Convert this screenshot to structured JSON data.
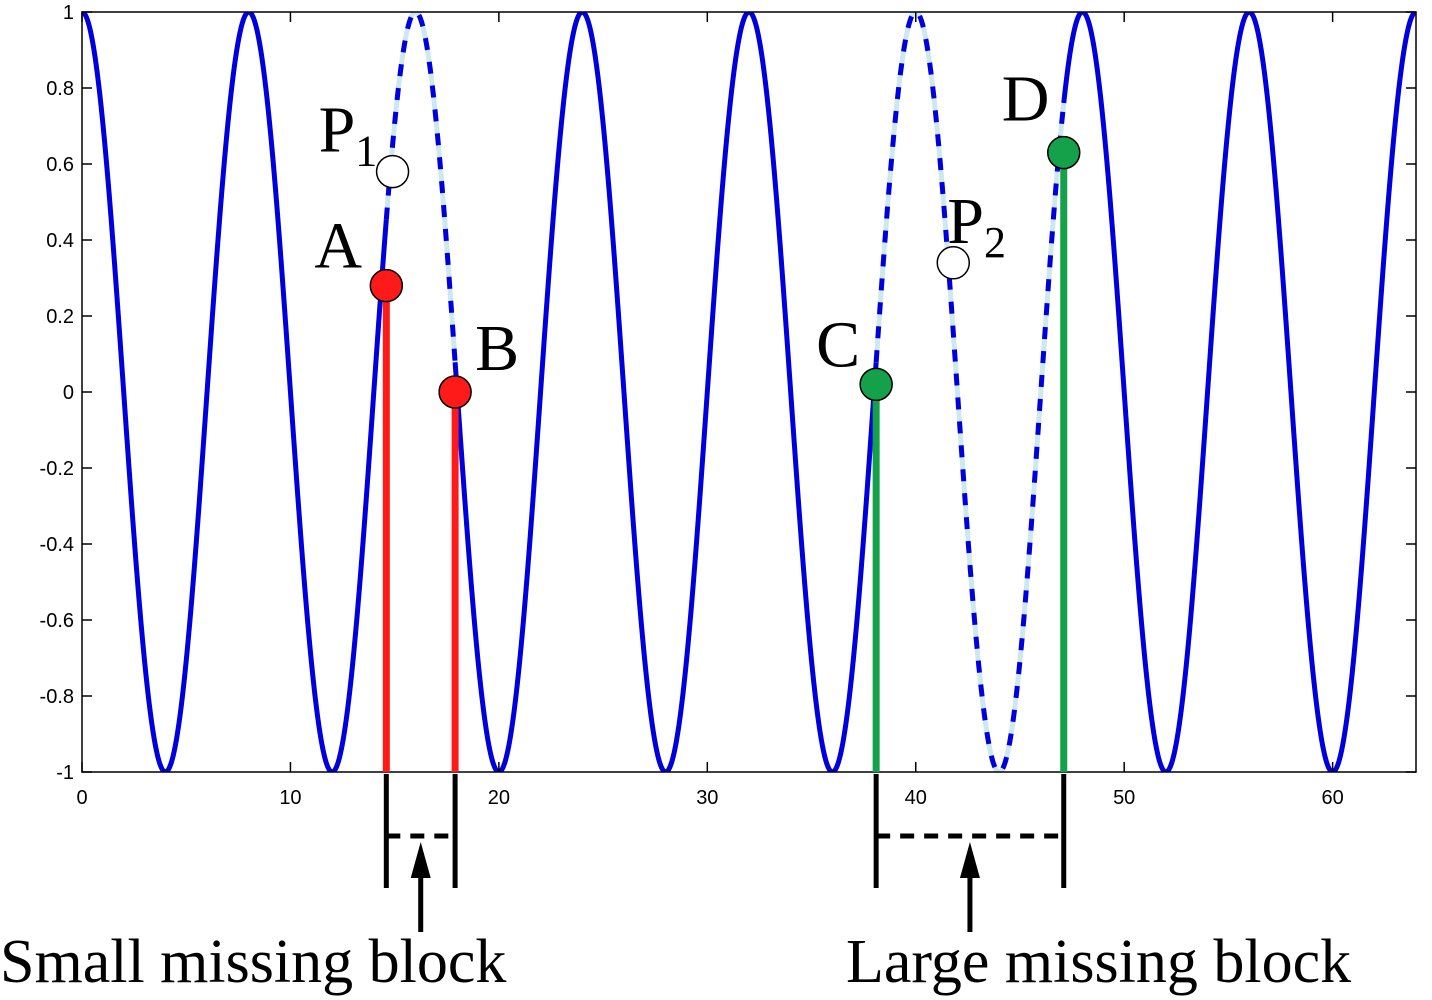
{
  "chart_data": {
    "type": "line",
    "title": "",
    "xlabel": "",
    "ylabel": "",
    "xlim": [
      0,
      64
    ],
    "ylim": [
      -1,
      1
    ],
    "x_ticks": [
      0,
      10,
      20,
      30,
      40,
      50,
      60
    ],
    "y_ticks": [
      -1,
      -0.8,
      -0.6,
      -0.4,
      -0.2,
      0,
      0.2,
      0.4,
      0.6,
      0.8,
      1
    ],
    "x_tick_labels": [
      "0",
      "10",
      "20",
      "30",
      "40",
      "50",
      "60"
    ],
    "y_tick_labels": [
      "-1",
      "-0.8",
      "-0.6",
      "-0.4",
      "-0.2",
      "0",
      "0.2",
      "0.4",
      "0.6",
      "0.8",
      "1"
    ],
    "grid": false,
    "legend": false,
    "signal": {
      "function": "cos(2*pi*x/8)",
      "x_range": [
        0,
        64
      ],
      "color": "#0000dd"
    },
    "missing_segment_color": "#cde8f0",
    "points": [
      {
        "name": "A",
        "label": "A",
        "sub": "",
        "x": 14.6,
        "y": 0.28,
        "color": "#ff1a1a",
        "stem": true
      },
      {
        "name": "B",
        "label": "B",
        "sub": "",
        "x": 17.9,
        "y": 0.0,
        "color": "#ff1a1a",
        "stem": true
      },
      {
        "name": "C",
        "label": "C",
        "sub": "",
        "x": 38.1,
        "y": 0.02,
        "color": "#15a04a",
        "stem": true
      },
      {
        "name": "D",
        "label": "D",
        "sub": "",
        "x": 47.1,
        "y": 0.63,
        "color": "#15a04a",
        "stem": true
      },
      {
        "name": "P1",
        "label": "P",
        "sub": "1",
        "x": 14.9,
        "y": 0.58,
        "color": "#ffffff",
        "stem": false
      },
      {
        "name": "P2",
        "label": "P",
        "sub": "2",
        "x": 41.8,
        "y": 0.34,
        "color": "#ffffff",
        "stem": false
      }
    ],
    "missing_blocks": [
      {
        "name": "small",
        "label": "Small missing block",
        "x_start": 14.6,
        "x_end": 17.9
      },
      {
        "name": "large",
        "label": "Large missing block",
        "x_start": 38.1,
        "x_end": 47.1
      }
    ]
  }
}
